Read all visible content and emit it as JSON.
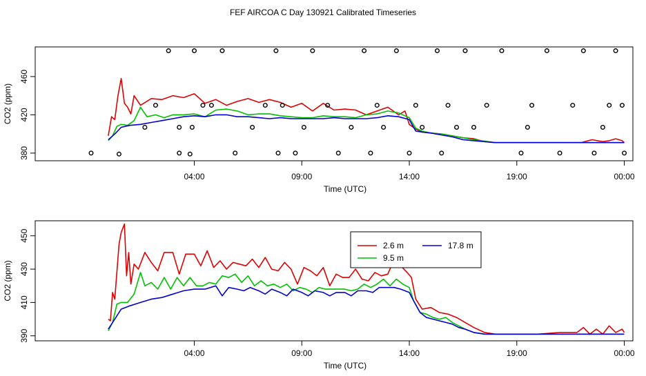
{
  "figure": {
    "title": "FEF AIRCOA C  Day 130921  Calibrated Timeseries"
  },
  "colors": {
    "s_2_6": "#e00000",
    "s_9_5": "#00c000",
    "s_17_8": "#0000d0",
    "axis": "#000000",
    "markers": "#000000"
  },
  "chart_data": [
    {
      "type": "line",
      "title": "FEF AIRCOA C  Day 130921  Calibrated Timeseries",
      "xlabel": "Time (UTC)",
      "ylabel": "CO2 (ppm)",
      "xlim": [
        -3.4,
        24.4
      ],
      "ylim": [
        372,
        491
      ],
      "xticks": [
        {
          "value": 4,
          "label": "04:00"
        },
        {
          "value": 9,
          "label": "09:00"
        },
        {
          "value": 14,
          "label": "14:00"
        },
        {
          "value": 19,
          "label": "19:00"
        },
        {
          "value": 24,
          "label": "00:00"
        }
      ],
      "yticks": [
        {
          "value": 380,
          "label": "380"
        },
        {
          "value": 420,
          "label": "420"
        },
        {
          "value": 460,
          "label": "460"
        }
      ],
      "legend": null,
      "series": [
        {
          "name": "2.6 m",
          "color": "#e00000",
          "x": [
            0,
            0.15,
            0.3,
            0.45,
            0.6,
            0.75,
            0.9,
            1.05,
            1.2,
            1.5,
            2,
            2.5,
            3,
            3.5,
            4,
            4.5,
            5,
            5.5,
            6,
            6.5,
            7,
            7.5,
            8,
            8.5,
            9,
            9.5,
            10,
            10.5,
            11,
            11.5,
            12,
            12.5,
            13,
            13.5,
            13.8,
            14,
            14.3,
            14.6,
            15,
            15.5,
            16,
            16.5,
            17,
            17.5,
            18,
            19,
            20,
            21,
            22,
            22.5,
            23,
            23.3,
            23.6,
            23.9,
            24
          ],
          "y": [
            398,
            418,
            415,
            440,
            458,
            432,
            428,
            421,
            440,
            430,
            437,
            436,
            440,
            438,
            442,
            432,
            436,
            430,
            434,
            437,
            433,
            436,
            433,
            428,
            432,
            424,
            432,
            425,
            426,
            425,
            420,
            424,
            428,
            420,
            424,
            410,
            405,
            402,
            401,
            400,
            398,
            396,
            395,
            392,
            391,
            391,
            391,
            391,
            391,
            394,
            392,
            393,
            395,
            393,
            391
          ]
        },
        {
          "name": "9.5 m",
          "color": "#00c000",
          "x": [
            0,
            0.2,
            0.4,
            0.6,
            0.9,
            1.2,
            1.5,
            1.8,
            2.2,
            2.6,
            3,
            3.5,
            4,
            4.5,
            5,
            5.5,
            6,
            6.5,
            7,
            7.5,
            8,
            8.5,
            9,
            9.5,
            10,
            10.5,
            11,
            11.5,
            12,
            12.5,
            13,
            13.5,
            14,
            14.3,
            14.6,
            15,
            15.5,
            16,
            16.5,
            17,
            18,
            19,
            20,
            21,
            22,
            23,
            24
          ],
          "y": [
            393,
            398,
            408,
            410,
            409,
            414,
            428,
            418,
            420,
            417,
            420,
            420,
            421,
            418,
            425,
            426,
            424,
            420,
            421,
            421,
            419,
            418,
            417,
            417,
            419,
            418,
            418,
            417,
            420,
            421,
            424,
            422,
            417,
            406,
            403,
            401,
            400,
            398,
            396,
            394,
            391,
            391,
            391,
            391,
            391,
            391,
            391
          ]
        },
        {
          "name": "17.8 m",
          "color": "#0000d0",
          "x": [
            0,
            0.3,
            0.6,
            1,
            1.5,
            2,
            2.5,
            3,
            3.5,
            4,
            4.5,
            5,
            5.5,
            6,
            6.5,
            7,
            7.5,
            8,
            8.5,
            9,
            9.5,
            10,
            10.5,
            11,
            11.5,
            12,
            12.5,
            13,
            13.5,
            14,
            14.3,
            14.6,
            15,
            15.5,
            16,
            16.5,
            17,
            18,
            19,
            20,
            21,
            22,
            23,
            24
          ],
          "y": [
            394,
            400,
            407,
            409,
            410,
            412,
            414,
            416,
            418,
            419,
            418,
            420,
            420,
            418,
            418,
            417,
            416,
            417,
            416,
            416,
            416,
            416,
            417,
            416,
            416,
            416,
            417,
            419,
            418,
            415,
            403,
            402,
            401,
            399,
            397,
            394,
            393,
            391,
            391,
            391,
            391,
            391,
            391,
            391
          ]
        }
      ],
      "markers": {
        "type": "scatter",
        "x": [
          -0.8,
          0.5,
          1.7,
          2.2,
          2.8,
          3.3,
          3.3,
          3.8,
          3.9,
          4.0,
          4.4,
          4.8,
          5.3,
          5.9,
          6.7,
          7.3,
          7.8,
          7.9,
          8.1,
          8.7,
          9.1,
          9.5,
          10.2,
          10.7,
          11.3,
          11.9,
          12.2,
          12.5,
          12.8,
          13.4,
          14.0,
          14.3,
          14.6,
          15.3,
          15.5,
          15.8,
          16.2,
          16.6,
          17.0,
          17.6,
          18.3,
          19.2,
          19.5,
          19.7,
          20.4,
          21.0,
          21.6,
          22.1,
          22.6,
          23.0,
          23.3,
          23.6,
          23.9,
          24.0
        ],
        "y": [
          380,
          379,
          407,
          430,
          487,
          380,
          407,
          379,
          407,
          487,
          430,
          430,
          487,
          380,
          407,
          430,
          487,
          380,
          430,
          380,
          407,
          487,
          430,
          380,
          407,
          487,
          380,
          430,
          407,
          487,
          380,
          430,
          407,
          487,
          380,
          430,
          407,
          487,
          407,
          430,
          487,
          380,
          407,
          430,
          487,
          380,
          430,
          487,
          380,
          407,
          430,
          487,
          430,
          380
        ]
      }
    },
    {
      "type": "line",
      "title": "",
      "xlabel": "Time (UTC)",
      "ylabel": "CO2 (ppm)",
      "xlim": [
        -3.4,
        24.4
      ],
      "ylim": [
        387,
        459
      ],
      "xticks": [
        {
          "value": 4,
          "label": "04:00"
        },
        {
          "value": 9,
          "label": "09:00"
        },
        {
          "value": 14,
          "label": "14:00"
        },
        {
          "value": 19,
          "label": "19:00"
        },
        {
          "value": 24,
          "label": "00:00"
        }
      ],
      "yticks": [
        {
          "value": 390,
          "label": "390"
        },
        {
          "value": 410,
          "label": "410"
        },
        {
          "value": 430,
          "label": "430"
        },
        {
          "value": 450,
          "label": "450"
        }
      ],
      "legend": {
        "location": "upper-center",
        "entries": [
          {
            "label": "2.6 m",
            "color": "#e00000"
          },
          {
            "label": "17.8 m",
            "color": "#0000d0"
          },
          {
            "label": "9.5 m",
            "color": "#00c000"
          }
        ]
      },
      "series": [
        {
          "name": "2.6 m",
          "color": "#e00000",
          "x": [
            0,
            0.1,
            0.2,
            0.3,
            0.5,
            0.6,
            0.75,
            0.85,
            0.95,
            1.05,
            1.2,
            1.4,
            1.7,
            2.0,
            2.3,
            2.6,
            3.0,
            3.3,
            3.6,
            4.0,
            4.3,
            4.6,
            4.9,
            5.2,
            5.5,
            5.8,
            6.1,
            6.4,
            6.7,
            7.0,
            7.3,
            7.6,
            7.9,
            8.2,
            8.5,
            8.8,
            9.1,
            9.4,
            9.7,
            10.0,
            10.3,
            10.6,
            10.9,
            11.2,
            11.5,
            11.8,
            12.1,
            12.4,
            12.7,
            13.0,
            13.3,
            13.6,
            13.9,
            14.1,
            14.3,
            14.6,
            15.0,
            15.4,
            15.8,
            16.2,
            16.6,
            17.0,
            17.5,
            18.0,
            19.0,
            20.0,
            21.0,
            21.8,
            22.1,
            22.4,
            22.7,
            23.0,
            23.3,
            23.6,
            23.9,
            24.0
          ],
          "y": [
            400,
            399,
            416,
            412,
            445,
            452,
            457,
            426,
            440,
            421,
            433,
            430,
            440,
            434,
            429,
            440,
            440,
            427,
            439,
            439,
            432,
            441,
            431,
            435,
            430,
            434,
            433,
            432,
            436,
            431,
            437,
            430,
            429,
            434,
            430,
            421,
            431,
            429,
            426,
            431,
            420,
            427,
            425,
            425,
            430,
            424,
            423,
            428,
            426,
            427,
            436,
            432,
            428,
            425,
            412,
            406,
            407,
            404,
            403,
            401,
            398,
            395,
            392,
            391,
            391,
            391,
            392,
            392,
            395,
            391,
            394,
            391,
            396,
            392,
            394,
            392
          ]
        },
        {
          "name": "9.5 m",
          "color": "#00c000",
          "x": [
            0,
            0.2,
            0.4,
            0.6,
            0.9,
            1.2,
            1.5,
            1.7,
            2.0,
            2.3,
            2.6,
            2.9,
            3.2,
            3.5,
            3.8,
            4.1,
            4.4,
            4.7,
            5.0,
            5.3,
            5.6,
            5.9,
            6.2,
            6.5,
            6.8,
            7.1,
            7.4,
            7.7,
            8.0,
            8.3,
            8.6,
            8.9,
            9.2,
            9.5,
            9.8,
            10.1,
            10.4,
            10.7,
            11.0,
            11.3,
            11.6,
            11.9,
            12.2,
            12.5,
            12.8,
            13.1,
            13.4,
            13.7,
            14.0,
            14.2,
            14.5,
            14.8,
            15.1,
            15.4,
            15.7,
            16.0,
            16.3,
            16.6,
            17.0,
            17.5,
            18.0,
            19.0,
            20.0,
            21.0,
            22.0,
            23.0,
            24.0
          ],
          "y": [
            393,
            398,
            409,
            410,
            410,
            415,
            428,
            420,
            422,
            418,
            425,
            418,
            425,
            420,
            425,
            420,
            420,
            422,
            421,
            426,
            425,
            427,
            422,
            426,
            420,
            423,
            420,
            421,
            419,
            421,
            417,
            419,
            418,
            416,
            419,
            418,
            418,
            418,
            418,
            417,
            418,
            421,
            419,
            421,
            424,
            420,
            424,
            421,
            419,
            411,
            404,
            403,
            401,
            400,
            401,
            398,
            396,
            394,
            392,
            391,
            391,
            391,
            391,
            391,
            391,
            391,
            391
          ]
        },
        {
          "name": "17.8 m",
          "color": "#0000d0",
          "x": [
            0,
            0.3,
            0.6,
            1.0,
            1.5,
            2.0,
            2.5,
            3.0,
            3.5,
            4.0,
            4.5,
            5.0,
            5.3,
            5.6,
            6.0,
            6.3,
            6.6,
            7.0,
            7.3,
            7.6,
            8.0,
            8.3,
            8.6,
            9.0,
            9.3,
            9.6,
            10.0,
            10.3,
            10.6,
            11.0,
            11.3,
            11.6,
            12.0,
            12.3,
            12.6,
            13.0,
            13.3,
            13.6,
            14.0,
            14.2,
            14.5,
            14.8,
            15.1,
            15.4,
            15.7,
            16.0,
            16.3,
            16.6,
            17.0,
            17.5,
            18.0,
            19.0,
            20.0,
            21.0,
            22.0,
            23.0,
            24.0
          ],
          "y": [
            394,
            400,
            406,
            408,
            410,
            412,
            413,
            415,
            417,
            418,
            418,
            420,
            414,
            419,
            418,
            417,
            419,
            417,
            415,
            418,
            416,
            414,
            418,
            416,
            414,
            417,
            416,
            414,
            416,
            416,
            414,
            417,
            417,
            416,
            419,
            419,
            419,
            418,
            416,
            411,
            404,
            401,
            400,
            399,
            398,
            397,
            395,
            394,
            392,
            391,
            391,
            391,
            391,
            391,
            391,
            391,
            391
          ]
        }
      ],
      "markers": null
    }
  ]
}
